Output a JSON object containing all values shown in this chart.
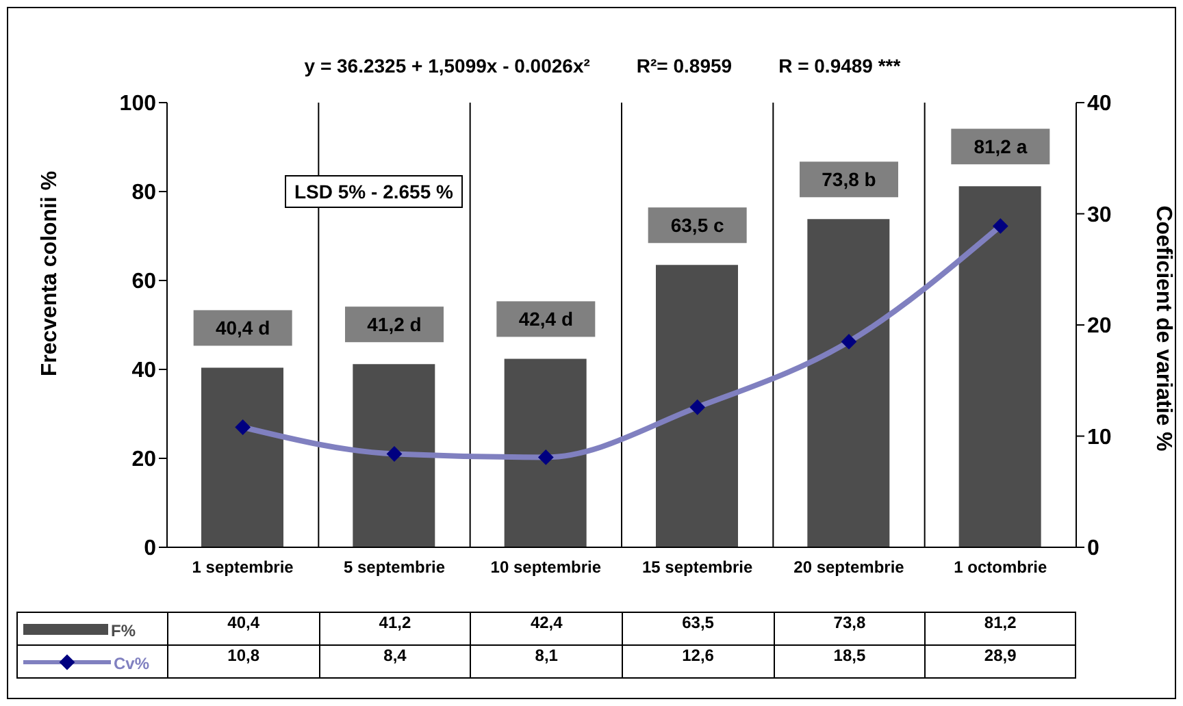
{
  "chart_data": {
    "type": "bar",
    "categories": [
      "1 septembrie",
      "5 septembrie",
      "10 septembrie",
      "15 septembrie",
      "20 septembrie",
      "1  octombrie"
    ],
    "series": [
      {
        "name": "F%",
        "color": "#4d4d4d",
        "values": [
          40.4,
          41.2,
          42.4,
          63.5,
          73.8,
          81.2
        ],
        "value_labels": [
          "40,4",
          "41,2",
          "42,4",
          "63,5",
          "73,8",
          "81,2"
        ]
      },
      {
        "name": "Cv%",
        "type": "line",
        "axis": "y2",
        "color": "#8080c0",
        "values": [
          10.8,
          8.4,
          8.1,
          12.6,
          18.5,
          28.9
        ],
        "value_labels": [
          "10,8",
          "8,4",
          "8,1",
          "12,6",
          "18,5",
          "28,9"
        ]
      }
    ],
    "ylabel": "Frecventa  colonii %",
    "y2label": "Coeficient de variatie %",
    "ylim": [
      0,
      100
    ],
    "yticks": [
      0,
      20,
      40,
      60,
      80,
      100
    ],
    "y2lim": [
      0,
      40
    ],
    "y2ticks": [
      0,
      10,
      20,
      30,
      40
    ],
    "annotations": [
      "y = 36.2325 + 1,5099x - 0.0026x²",
      "R²= 0.8959",
      "R = 0.9489 ***",
      "LSD 5% - 2.655 %",
      {
        "text": "40,4 d",
        "x": "1 septembrie",
        "y": 40.4
      },
      {
        "text": "41,2 d",
        "x": "5 septembrie",
        "y": 41.2
      },
      {
        "text": "42,4 d",
        "x": "10 septembrie",
        "y": 42.4
      },
      {
        "text": "63,5 c",
        "x": "15 septembrie",
        "y": 63.5
      },
      {
        "text": "73,8 b",
        "x": "20 septembrie",
        "y": 73.8
      },
      {
        "text": "81,2 a",
        "x": "1  octombrie",
        "y": 81.2
      }
    ],
    "legend": "bottom",
    "grid": "x",
    "marker": "diamond",
    "line_style": "solid"
  }
}
